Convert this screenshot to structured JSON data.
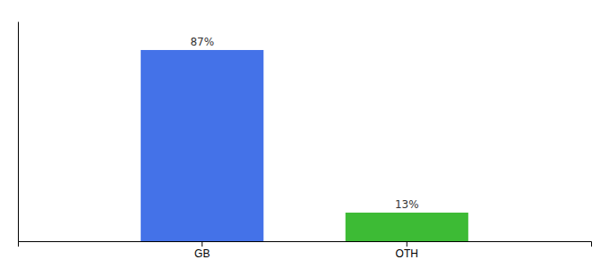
{
  "chart_data": {
    "type": "bar",
    "categories": [
      "GB",
      "OTH"
    ],
    "values": [
      87,
      13
    ],
    "value_labels": [
      "87%",
      "13%"
    ],
    "colors": [
      "#4472e8",
      "#3dbb35"
    ],
    "ylim": [
      0,
      100
    ],
    "data_labels": true,
    "tick_labels": "x"
  }
}
